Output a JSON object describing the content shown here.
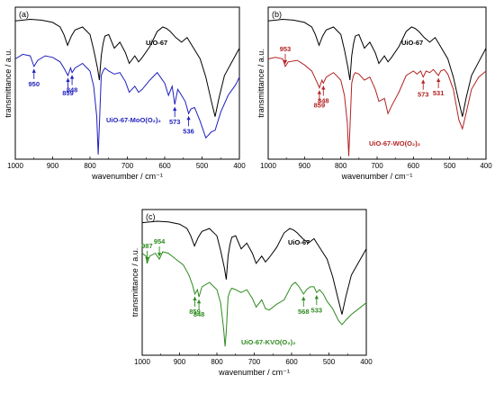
{
  "chart_data": [
    {
      "type": "line",
      "panel_label": "(a)",
      "xlabel": "wavenumber / cm⁻¹",
      "ylabel": "transmittance / a.u.",
      "xlim": [
        1000,
        400
      ],
      "ylim": [
        0,
        100
      ],
      "xticks": [
        1000,
        900,
        800,
        700,
        600,
        500,
        400
      ],
      "series": [
        {
          "name": "UiO-67",
          "color": "#000000",
          "x": [
            1000,
            960,
            930,
            900,
            880,
            870,
            860,
            850,
            840,
            820,
            800,
            790,
            780,
            775,
            770,
            765,
            760,
            750,
            735,
            720,
            705,
            695,
            680,
            670,
            660,
            640,
            620,
            605,
            595,
            585,
            570,
            555,
            540,
            525,
            505,
            490,
            475,
            465,
            455,
            440,
            420,
            400
          ],
          "y": [
            91,
            92,
            91.5,
            90,
            87,
            82,
            75,
            81,
            85,
            87,
            82,
            72,
            60,
            52,
            68,
            76,
            81,
            82,
            73,
            77,
            70,
            63,
            68,
            64,
            67,
            74,
            84,
            87,
            86,
            84,
            80,
            77,
            80,
            74,
            66,
            54,
            38,
            28,
            40,
            55,
            64,
            73
          ]
        },
        {
          "name": "UiO-67-MoO(O2)2",
          "color": "#1f1fbf",
          "x": [
            1000,
            980,
            960,
            950,
            940,
            920,
            900,
            880,
            870,
            859,
            852,
            848,
            840,
            820,
            800,
            790,
            782,
            778,
            775,
            770,
            765,
            760,
            750,
            735,
            720,
            705,
            695,
            680,
            670,
            660,
            640,
            620,
            600,
            590,
            580,
            573,
            565,
            555,
            545,
            536,
            530,
            520,
            505,
            490,
            475,
            465,
            450,
            430,
            410,
            400
          ],
          "y": [
            66,
            69,
            68,
            61,
            65,
            68,
            67,
            64,
            60,
            55,
            60,
            57,
            60,
            63,
            58,
            48,
            28,
            3,
            22,
            55,
            58,
            60,
            58,
            56,
            57,
            51,
            44,
            48,
            44,
            46,
            52,
            57,
            50,
            42,
            48,
            36,
            46,
            42,
            38,
            30,
            33,
            34,
            25,
            14,
            18,
            19,
            31,
            42,
            49,
            54
          ]
        }
      ],
      "annotations": [
        {
          "text": "950",
          "x": 950,
          "color": "#1f1fbf"
        },
        {
          "text": "859",
          "x": 859,
          "color": "#1f1fbf"
        },
        {
          "text": "848",
          "x": 848,
          "color": "#1f1fbf"
        },
        {
          "text": "573",
          "x": 573,
          "color": "#1f1fbf"
        },
        {
          "text": "536",
          "x": 536,
          "color": "#1f1fbf"
        }
      ],
      "series_labels": [
        {
          "text": "UiO-67",
          "color": "#000000"
        },
        {
          "text": "UiO-67-MoO(O₂)₂",
          "color": "#1f1fbf"
        }
      ]
    },
    {
      "type": "line",
      "panel_label": "(b)",
      "xlabel": "wavenumber / cm⁻¹",
      "ylabel": "transmittance / a.u.",
      "xlim": [
        1000,
        400
      ],
      "ylim": [
        0,
        100
      ],
      "xticks": [
        1000,
        900,
        800,
        700,
        600,
        500,
        400
      ],
      "series": [
        {
          "name": "UiO-67",
          "color": "#000000",
          "x": [
            1000,
            960,
            930,
            900,
            880,
            870,
            860,
            850,
            840,
            820,
            800,
            790,
            780,
            775,
            770,
            765,
            760,
            750,
            735,
            720,
            705,
            695,
            680,
            670,
            660,
            640,
            620,
            605,
            595,
            585,
            570,
            555,
            540,
            525,
            505,
            490,
            475,
            465,
            455,
            440,
            420,
            400
          ],
          "y": [
            91,
            92,
            91.5,
            90,
            87,
            82,
            75,
            81,
            85,
            87,
            82,
            72,
            60,
            52,
            68,
            76,
            81,
            82,
            73,
            77,
            70,
            63,
            68,
            64,
            67,
            74,
            84,
            87,
            86,
            84,
            80,
            77,
            80,
            74,
            66,
            54,
            38,
            28,
            40,
            55,
            64,
            73
          ]
        },
        {
          "name": "UiO-67-WO(O2)2",
          "color": "#b22222",
          "x": [
            1000,
            980,
            960,
            953,
            945,
            920,
            900,
            880,
            870,
            859,
            852,
            848,
            840,
            820,
            800,
            790,
            782,
            778,
            775,
            770,
            765,
            760,
            750,
            735,
            720,
            705,
            695,
            680,
            670,
            660,
            640,
            620,
            600,
            590,
            580,
            573,
            565,
            555,
            545,
            531,
            525,
            515,
            505,
            490,
            475,
            465,
            455,
            440,
            420,
            400
          ],
          "y": [
            66,
            67,
            66,
            61,
            64,
            65,
            62,
            58,
            53,
            47,
            52,
            50,
            54,
            57,
            52,
            42,
            24,
            2,
            20,
            50,
            55,
            57,
            56,
            52,
            54,
            46,
            38,
            40,
            30,
            35,
            44,
            55,
            58,
            56,
            58,
            54,
            58,
            57,
            59,
            55,
            58,
            59,
            56,
            46,
            26,
            20,
            30,
            46,
            54,
            58
          ]
        }
      ],
      "annotations": [
        {
          "text": "953",
          "x": 953,
          "color": "#b22222"
        },
        {
          "text": "859",
          "x": 859,
          "color": "#b22222"
        },
        {
          "text": "848",
          "x": 848,
          "color": "#b22222"
        },
        {
          "text": "573",
          "x": 573,
          "color": "#b22222"
        },
        {
          "text": "531",
          "x": 531,
          "color": "#b22222"
        }
      ],
      "series_labels": [
        {
          "text": "UiO-67",
          "color": "#000000"
        },
        {
          "text": "UiO-67-WO(O₂)₂",
          "color": "#b22222"
        }
      ]
    },
    {
      "type": "line",
      "panel_label": "(c)",
      "xlabel": "wavenumber / cm⁻¹",
      "ylabel": "transmittance / a.u.",
      "xlim": [
        1000,
        400
      ],
      "ylim": [
        0,
        100
      ],
      "xticks": [
        1000,
        900,
        800,
        700,
        600,
        500,
        400
      ],
      "series": [
        {
          "name": "UiO-67",
          "color": "#000000",
          "x": [
            1000,
            960,
            930,
            900,
            880,
            870,
            860,
            850,
            840,
            820,
            800,
            790,
            780,
            775,
            770,
            765,
            760,
            750,
            735,
            720,
            705,
            695,
            680,
            670,
            660,
            640,
            620,
            605,
            595,
            585,
            570,
            555,
            540,
            525,
            505,
            490,
            475,
            465,
            455,
            440,
            420,
            400
          ],
          "y": [
            91,
            92,
            91.5,
            90,
            87,
            82,
            75,
            81,
            85,
            87,
            82,
            72,
            60,
            52,
            68,
            76,
            81,
            82,
            73,
            77,
            70,
            63,
            68,
            64,
            67,
            74,
            84,
            87,
            86,
            84,
            80,
            77,
            80,
            74,
            66,
            54,
            38,
            28,
            40,
            55,
            64,
            73
          ]
        },
        {
          "name": "UiO-67-KVO(O2)2",
          "color": "#2e8b1f",
          "x": [
            1000,
            990,
            987,
            980,
            965,
            954,
            945,
            930,
            910,
            890,
            875,
            865,
            859,
            852,
            848,
            840,
            820,
            800,
            790,
            782,
            778,
            775,
            770,
            765,
            760,
            750,
            735,
            720,
            705,
            695,
            680,
            670,
            660,
            640,
            620,
            600,
            590,
            580,
            568,
            560,
            550,
            540,
            533,
            525,
            515,
            505,
            490,
            475,
            465,
            455,
            440,
            420,
            400
          ],
          "y": [
            70,
            68,
            63,
            68,
            70,
            66,
            71,
            70,
            66,
            62,
            55,
            48,
            42,
            45,
            40,
            47,
            50,
            45,
            36,
            18,
            6,
            16,
            40,
            44,
            46,
            45,
            43,
            45,
            39,
            33,
            38,
            32,
            31,
            35,
            38,
            48,
            50,
            47,
            42,
            45,
            47,
            47,
            43,
            45,
            42,
            37,
            32,
            24,
            21,
            24,
            28,
            32,
            36
          ]
        }
      ],
      "annotations": [
        {
          "text": "987",
          "x": 987,
          "color": "#2e8b1f"
        },
        {
          "text": "954",
          "x": 954,
          "color": "#2e8b1f"
        },
        {
          "text": "859",
          "x": 859,
          "color": "#2e8b1f"
        },
        {
          "text": "848",
          "x": 848,
          "color": "#2e8b1f"
        },
        {
          "text": "568",
          "x": 568,
          "color": "#2e8b1f"
        },
        {
          "text": "533",
          "x": 533,
          "color": "#2e8b1f"
        }
      ],
      "series_labels": [
        {
          "text": "UiO-67",
          "color": "#000000"
        },
        {
          "text": "UiO-67-KVO(O₂)₂",
          "color": "#2e8b1f"
        }
      ]
    }
  ]
}
